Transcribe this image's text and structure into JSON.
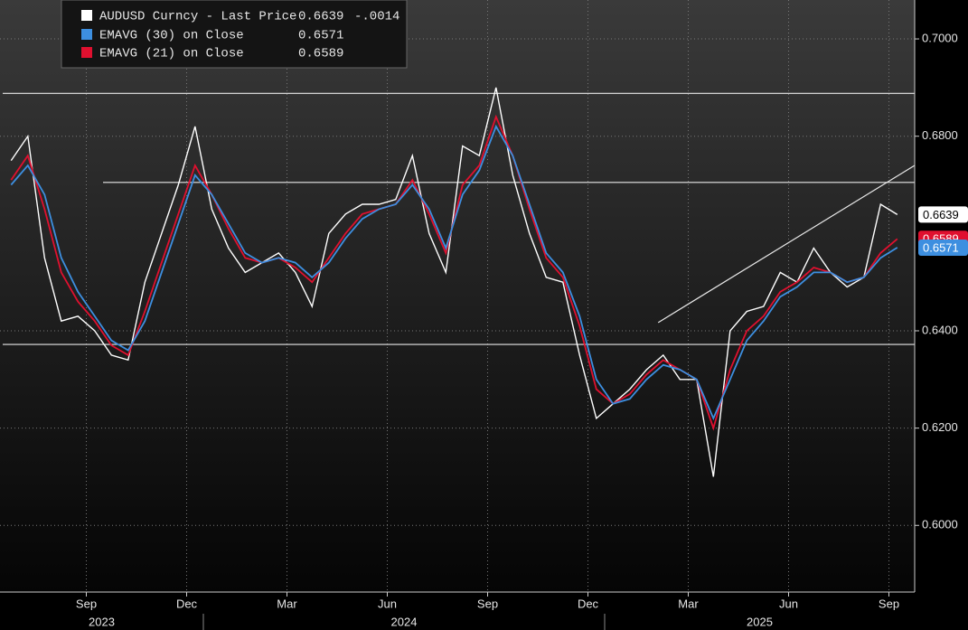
{
  "chart_data": {
    "type": "line",
    "x": [
      "2023-07",
      "2023-07",
      "2023-08",
      "2023-08",
      "2023-09",
      "2023-09",
      "2023-10",
      "2023-10",
      "2023-11",
      "2023-11",
      "2023-12",
      "2023-12",
      "2024-01",
      "2024-01",
      "2024-02",
      "2024-02",
      "2024-03",
      "2024-03",
      "2024-04",
      "2024-04",
      "2024-05",
      "2024-05",
      "2024-06",
      "2024-06",
      "2024-07",
      "2024-07",
      "2024-08",
      "2024-08",
      "2024-09",
      "2024-09",
      "2024-10",
      "2024-10",
      "2024-11",
      "2024-11",
      "2024-12",
      "2024-12",
      "2025-01",
      "2025-01",
      "2025-02",
      "2025-02",
      "2025-03",
      "2025-03",
      "2025-04",
      "2025-04",
      "2025-05",
      "2025-05",
      "2025-06",
      "2025-06",
      "2025-07",
      "2025-07",
      "2025-08",
      "2025-08",
      "2025-09",
      "2025-09"
    ],
    "series": [
      {
        "name": "AUDUSD Curncy - Last Price",
        "color": "#ffffff",
        "values": [
          0.675,
          0.68,
          0.655,
          0.642,
          0.643,
          0.64,
          0.635,
          0.634,
          0.65,
          0.66,
          0.67,
          0.682,
          0.665,
          0.657,
          0.652,
          0.654,
          0.656,
          0.652,
          0.645,
          0.66,
          0.664,
          0.666,
          0.666,
          0.667,
          0.676,
          0.66,
          0.652,
          0.678,
          0.676,
          0.69,
          0.672,
          0.66,
          0.651,
          0.65,
          0.635,
          0.622,
          0.625,
          0.628,
          0.632,
          0.635,
          0.63,
          0.63,
          0.61,
          0.64,
          0.644,
          0.645,
          0.652,
          0.65,
          0.657,
          0.652,
          0.649,
          0.651,
          0.666,
          0.6639
        ]
      },
      {
        "name": "EMAVG (30) on Close",
        "color": "#3d8fe0",
        "values": [
          0.67,
          0.674,
          0.668,
          0.655,
          0.648,
          0.643,
          0.638,
          0.636,
          0.642,
          0.652,
          0.662,
          0.672,
          0.668,
          0.662,
          0.656,
          0.654,
          0.655,
          0.654,
          0.651,
          0.654,
          0.659,
          0.663,
          0.665,
          0.666,
          0.67,
          0.665,
          0.657,
          0.668,
          0.673,
          0.682,
          0.676,
          0.666,
          0.656,
          0.652,
          0.643,
          0.63,
          0.625,
          0.626,
          0.63,
          0.633,
          0.632,
          0.63,
          0.622,
          0.63,
          0.638,
          0.642,
          0.647,
          0.649,
          0.652,
          0.652,
          0.65,
          0.651,
          0.655,
          0.6571
        ]
      },
      {
        "name": "EMAVG (21) on Close",
        "color": "#e0102f",
        "values": [
          0.671,
          0.676,
          0.665,
          0.652,
          0.646,
          0.642,
          0.637,
          0.635,
          0.644,
          0.654,
          0.664,
          0.674,
          0.668,
          0.661,
          0.655,
          0.654,
          0.655,
          0.653,
          0.65,
          0.655,
          0.66,
          0.664,
          0.665,
          0.666,
          0.671,
          0.664,
          0.656,
          0.67,
          0.674,
          0.684,
          0.676,
          0.665,
          0.655,
          0.651,
          0.641,
          0.628,
          0.625,
          0.627,
          0.631,
          0.634,
          0.632,
          0.63,
          0.62,
          0.632,
          0.64,
          0.643,
          0.648,
          0.65,
          0.653,
          0.652,
          0.65,
          0.651,
          0.656,
          0.6589
        ]
      }
    ],
    "change": "-.0014",
    "ylim": [
      0.5863,
      0.708
    ],
    "yticks": [
      {
        "value": 0.6,
        "label": "0.6000"
      },
      {
        "value": 0.62,
        "label": "0.6200"
      },
      {
        "value": 0.64,
        "label": "0.6400"
      },
      {
        "value": 0.68,
        "label": "0.6800"
      },
      {
        "value": 0.7,
        "label": "0.7000"
      }
    ],
    "xticks": [
      {
        "value": "2023-09",
        "label": "Sep"
      },
      {
        "value": "2023-12",
        "label": "Dec"
      },
      {
        "value": "2024-03",
        "label": "Mar"
      },
      {
        "value": "2024-06",
        "label": "Jun"
      },
      {
        "value": "2024-09",
        "label": "Sep"
      },
      {
        "value": "2024-12",
        "label": "Dec"
      },
      {
        "value": "2025-03",
        "label": "Mar"
      },
      {
        "value": "2025-06",
        "label": "Jun"
      },
      {
        "value": "2025-09",
        "label": "Sep"
      }
    ],
    "years": [
      "2023",
      "2024",
      "2025"
    ],
    "hlines": [
      {
        "y": 0.6888,
        "x0": "2023-07"
      },
      {
        "y": 0.6705,
        "x0": "2023-10"
      },
      {
        "y": 0.6372,
        "x0": "2023-07"
      }
    ],
    "trendline": {
      "x0": "2025-02",
      "y0": 0.6417,
      "y1": 0.674
    },
    "grid": true
  }
}
